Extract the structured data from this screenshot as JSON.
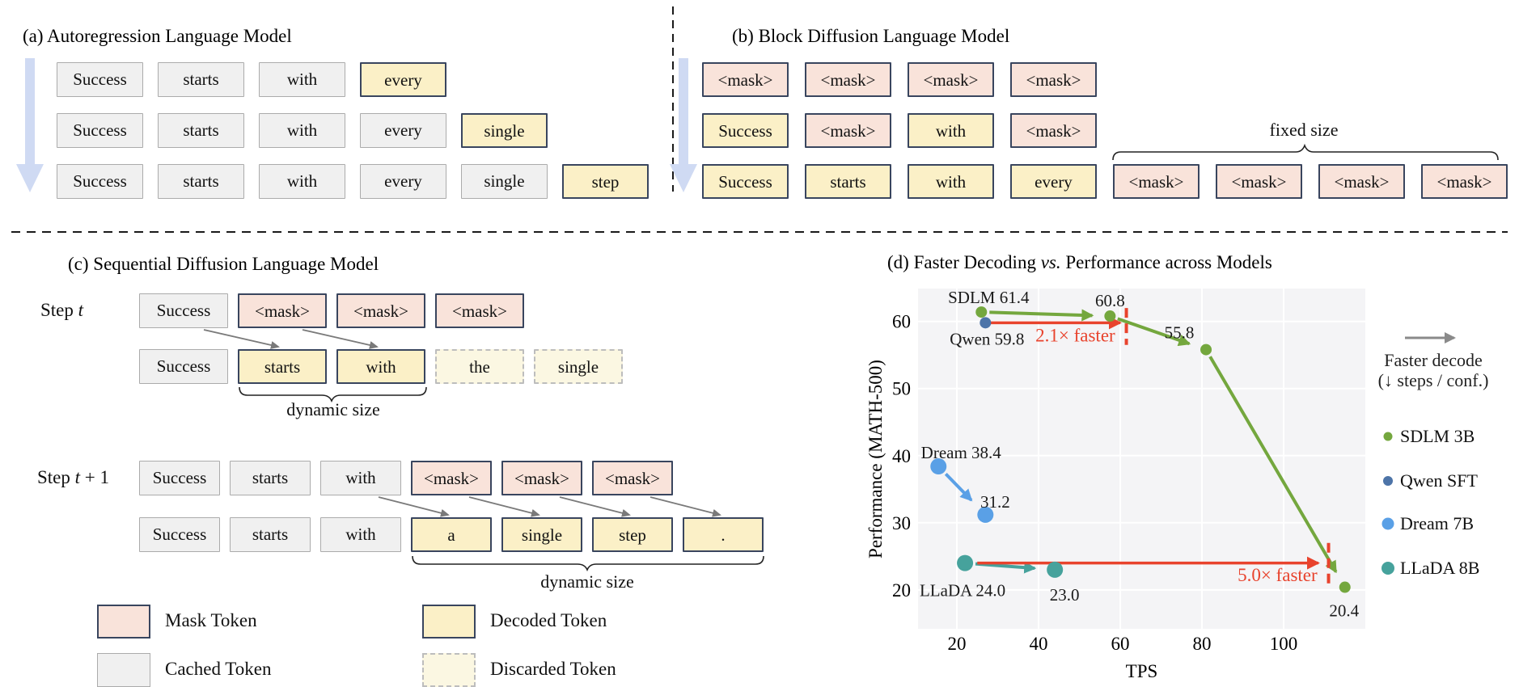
{
  "colors": {
    "mask_fill": "#f9e3da",
    "decoded_fill": "#fbf0c7",
    "cached_fill": "#f0f0f0",
    "discarded_fill": "#fbf7e2",
    "token_border": "#39455e",
    "flow_arrow": "#cfdaf3",
    "connector": "#7a7a7a",
    "sdlm_green": "#74a73e",
    "qwen_blue": "#4d74a8",
    "dream_blue": "#5aa0e6",
    "llada_teal": "#46a29c",
    "annotation_red": "#e8432d",
    "legend_gray": "#8a8a8a"
  },
  "panel_a": {
    "title": "(a) Autoregression Language Model",
    "rows": [
      [
        {
          "text": "Success",
          "kind": "cached"
        },
        {
          "text": "starts",
          "kind": "cached"
        },
        {
          "text": "with",
          "kind": "cached"
        },
        {
          "text": "every",
          "kind": "decoded"
        }
      ],
      [
        {
          "text": "Success",
          "kind": "cached"
        },
        {
          "text": "starts",
          "kind": "cached"
        },
        {
          "text": "with",
          "kind": "cached"
        },
        {
          "text": "every",
          "kind": "cached"
        },
        {
          "text": "single",
          "kind": "decoded"
        }
      ],
      [
        {
          "text": "Success",
          "kind": "cached"
        },
        {
          "text": "starts",
          "kind": "cached"
        },
        {
          "text": "with",
          "kind": "cached"
        },
        {
          "text": "every",
          "kind": "cached"
        },
        {
          "text": "single",
          "kind": "cached"
        },
        {
          "text": "step",
          "kind": "decoded"
        }
      ]
    ]
  },
  "panel_b": {
    "title": "(b) Block Diffusion Language Model",
    "fixed_size_label": "fixed size",
    "rows": [
      [
        {
          "text": "<mask>",
          "kind": "mask"
        },
        {
          "text": "<mask>",
          "kind": "mask"
        },
        {
          "text": "<mask>",
          "kind": "mask"
        },
        {
          "text": "<mask>",
          "kind": "mask"
        }
      ],
      [
        {
          "text": "Success",
          "kind": "decoded"
        },
        {
          "text": "<mask>",
          "kind": "mask"
        },
        {
          "text": "with",
          "kind": "decoded"
        },
        {
          "text": "<mask>",
          "kind": "mask"
        }
      ],
      [
        {
          "text": "Success",
          "kind": "decoded"
        },
        {
          "text": "starts",
          "kind": "decoded"
        },
        {
          "text": "with",
          "kind": "decoded"
        },
        {
          "text": "every",
          "kind": "decoded"
        },
        {
          "text": "<mask>",
          "kind": "mask"
        },
        {
          "text": "<mask>",
          "kind": "mask"
        },
        {
          "text": "<mask>",
          "kind": "mask"
        },
        {
          "text": "<mask>",
          "kind": "mask"
        }
      ]
    ]
  },
  "panel_c": {
    "title": "(c) Sequential Diffusion Language Model",
    "step_t": {
      "parts": [
        "Step ",
        "t",
        ""
      ]
    },
    "step_t1": {
      "parts": [
        "Step ",
        "t",
        " + 1"
      ]
    },
    "dynamic_size_label_1": "dynamic size",
    "dynamic_size_label_2": "dynamic size",
    "step_t_rows": [
      [
        {
          "text": "Success",
          "kind": "cached"
        },
        {
          "text": "<mask>",
          "kind": "mask"
        },
        {
          "text": "<mask>",
          "kind": "mask"
        },
        {
          "text": "<mask>",
          "kind": "mask"
        }
      ],
      [
        {
          "text": "Success",
          "kind": "cached"
        },
        {
          "text": "starts",
          "kind": "decoded"
        },
        {
          "text": "with",
          "kind": "decoded"
        },
        {
          "text": "the",
          "kind": "discarded"
        },
        {
          "text": "single",
          "kind": "discarded"
        }
      ]
    ],
    "step_t1_rows": [
      [
        {
          "text": "Success",
          "kind": "cached"
        },
        {
          "text": "starts",
          "kind": "cached"
        },
        {
          "text": "with",
          "kind": "cached"
        },
        {
          "text": "<mask>",
          "kind": "mask"
        },
        {
          "text": "<mask>",
          "kind": "mask"
        },
        {
          "text": "<mask>",
          "kind": "mask"
        }
      ],
      [
        {
          "text": "Success",
          "kind": "cached"
        },
        {
          "text": "starts",
          "kind": "cached"
        },
        {
          "text": "with",
          "kind": "cached"
        },
        {
          "text": "a",
          "kind": "decoded"
        },
        {
          "text": "single",
          "kind": "decoded"
        },
        {
          "text": "step",
          "kind": "decoded"
        },
        {
          "text": ".",
          "kind": "decoded"
        }
      ]
    ]
  },
  "token_legend": {
    "items": [
      {
        "label": "Mask Token",
        "kind": "mask"
      },
      {
        "label": "Cached Token",
        "kind": "cached"
      },
      {
        "label": "Decoded Token",
        "kind": "decoded"
      },
      {
        "label": "Discarded Token",
        "kind": "discarded"
      }
    ]
  },
  "chart_data": {
    "type": "scatter",
    "title_parts": [
      "(d) Faster Decoding ",
      "vs.",
      " Performance across Models"
    ],
    "xlabel": "TPS",
    "ylabel": "Performance (MATH-500)",
    "xlim": [
      10.5,
      120
    ],
    "ylim": [
      14.2,
      64.9
    ],
    "x_ticks": [
      20,
      40,
      60,
      80,
      100
    ],
    "y_ticks": [
      20,
      30,
      40,
      50,
      60
    ],
    "grid": true,
    "plot_bg": "#f4f4f6",
    "series": [
      {
        "name": "SDLM 3B",
        "color": "#74a73e",
        "r": 7,
        "arrows": true,
        "points": [
          {
            "x": 26,
            "y": 61.4,
            "label": "SDLM 61.4",
            "dx": 9,
            "dy": -11
          },
          {
            "x": 57.5,
            "y": 60.8,
            "label": "60.8",
            "dx": 0,
            "dy": -12
          },
          {
            "x": 81,
            "y": 55.8,
            "label": "55.8",
            "dx": -33,
            "dy": -14
          },
          {
            "x": 115,
            "y": 20.4,
            "label": "20.4",
            "dx": -1,
            "dy": 36
          }
        ]
      },
      {
        "name": "Qwen SFT",
        "color": "#4d74a8",
        "r": 7,
        "arrows": false,
        "points": [
          {
            "x": 27,
            "y": 59.8,
            "label": "Qwen 59.8",
            "dx": 2,
            "dy": 27
          }
        ]
      },
      {
        "name": "Dream 7B",
        "color": "#5aa0e6",
        "r": 10,
        "arrows": true,
        "points": [
          {
            "x": 15.5,
            "y": 38.4,
            "label": "Dream 38.4",
            "dx": 28,
            "dy": -10
          },
          {
            "x": 27,
            "y": 31.2,
            "label": "31.2",
            "dx": 12,
            "dy": -9
          }
        ]
      },
      {
        "name": "LLaDA 8B",
        "color": "#46a29c",
        "r": 10,
        "arrows": true,
        "points": [
          {
            "x": 22,
            "y": 24.0,
            "label": "LLaDA 24.0",
            "dx": -3,
            "dy": 41
          },
          {
            "x": 44,
            "y": 23.0,
            "label": "23.0",
            "dx": 12,
            "dy": 38
          }
        ]
      }
    ],
    "annotations": [
      {
        "type": "arrow",
        "x1": 28,
        "y1": 59.8,
        "x2": 60,
        "y2": 59.8,
        "color": "#e8432d"
      },
      {
        "type": "vline",
        "x": 61.5,
        "y1": 62.0,
        "y2": 56.5,
        "color": "#e8432d"
      },
      {
        "type": "text",
        "x": 49,
        "y": 57.0,
        "text": "2.1× faster",
        "color": "#e8432d"
      },
      {
        "type": "arrow",
        "x1": 25,
        "y1": 24.0,
        "x2": 108.5,
        "y2": 24.0,
        "color": "#e8432d"
      },
      {
        "type": "vline",
        "x": 111,
        "y1": 27.0,
        "y2": 20.5,
        "color": "#e8432d"
      },
      {
        "type": "text",
        "x": 98.5,
        "y": 21.3,
        "text": "5.0× faster",
        "color": "#e8432d"
      }
    ],
    "legend": {
      "position": "right",
      "note_lines": [
        "Faster decode",
        "(↓ steps / conf.)"
      ],
      "note_arrow_color": "#8a8a8a",
      "entries": [
        {
          "label": "SDLM 3B",
          "color": "#74a73e",
          "r": 5.5
        },
        {
          "label": "Qwen SFT",
          "color": "#4d74a8",
          "r": 6
        },
        {
          "label": "Dream 7B",
          "color": "#5aa0e6",
          "r": 7.5
        },
        {
          "label": "LLaDA 8B",
          "color": "#46a29c",
          "r": 8
        }
      ]
    }
  }
}
